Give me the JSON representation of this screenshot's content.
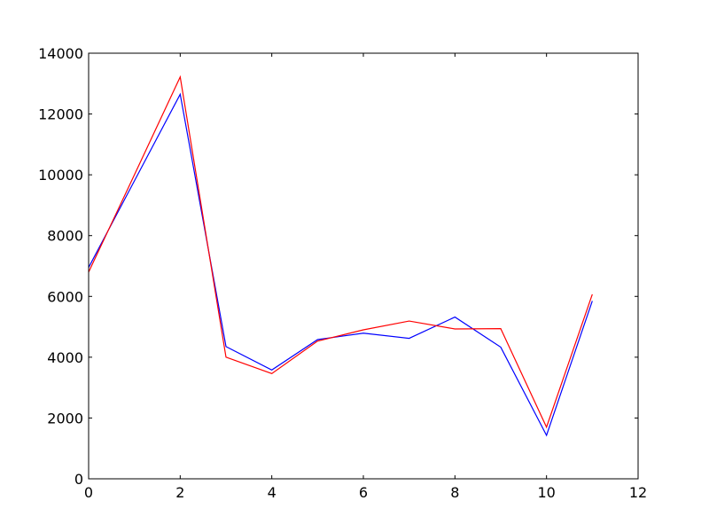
{
  "chart_data": {
    "type": "line",
    "title": "",
    "xlabel": "",
    "ylabel": "",
    "xlim": [
      0,
      12
    ],
    "ylim": [
      0,
      14000
    ],
    "grid": false,
    "xticks": [
      0,
      2,
      4,
      6,
      8,
      10,
      12
    ],
    "yticks": [
      0,
      2000,
      4000,
      6000,
      8000,
      10000,
      12000,
      14000
    ],
    "xtick_labels": [
      "0",
      "2",
      "4",
      "6",
      "8",
      "10",
      "12"
    ],
    "ytick_labels": [
      "0",
      "2000",
      "4000",
      "6000",
      "8000",
      "10000",
      "12000",
      "14000"
    ],
    "x": [
      0,
      1,
      2,
      3,
      4,
      5,
      6,
      7,
      8,
      9,
      10,
      11
    ],
    "series": [
      {
        "color": "#0000ff",
        "values": [
          6950,
          9800,
          12650,
          4350,
          3580,
          4580,
          4790,
          4620,
          5320,
          4330,
          1430,
          5850
        ]
      },
      {
        "color": "#ff0000",
        "values": [
          6800,
          10000,
          13220,
          4000,
          3460,
          4530,
          4900,
          5190,
          4930,
          4940,
          1700,
          6070
        ]
      }
    ]
  }
}
